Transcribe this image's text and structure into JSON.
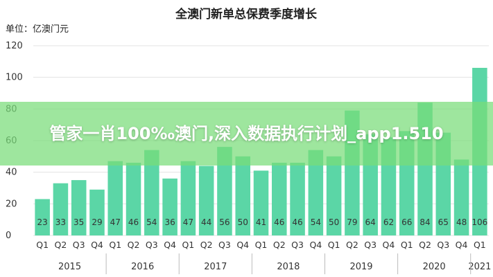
{
  "banner": {
    "text": "管家一肖100‰澳门,深入数据执行计划_app1.510"
  },
  "chart_data": {
    "type": "bar",
    "title": "全澳门新单总保费季度增长",
    "unit_label": "单位：亿澳门元",
    "ylim": [
      0,
      120
    ],
    "yticks": [
      0,
      20,
      40,
      60,
      80,
      100,
      120
    ],
    "grid": true,
    "categories": [
      "Q1",
      "Q2",
      "Q3",
      "Q4",
      "Q1",
      "Q2",
      "Q3",
      "Q4",
      "Q1",
      "Q2",
      "Q3",
      "Q4",
      "Q1",
      "Q2",
      "Q3",
      "Q4",
      "Q1",
      "Q2",
      "Q3",
      "Q4",
      "Q1",
      "Q2",
      "Q3",
      "Q4",
      "Q1"
    ],
    "years": [
      {
        "label": "2015",
        "count": 4
      },
      {
        "label": "2016",
        "count": 4
      },
      {
        "label": "2017",
        "count": 4
      },
      {
        "label": "2018",
        "count": 4
      },
      {
        "label": "2019",
        "count": 4
      },
      {
        "label": "2020",
        "count": 4
      },
      {
        "label": "2021",
        "count": 1
      }
    ],
    "values": [
      23,
      33,
      35,
      29,
      47,
      46,
      54,
      36,
      47,
      44,
      56,
      50,
      41,
      46,
      46,
      54,
      50,
      79,
      64,
      62,
      66,
      84,
      65,
      48,
      106
    ],
    "bar_color": "#5bd6a6"
  }
}
